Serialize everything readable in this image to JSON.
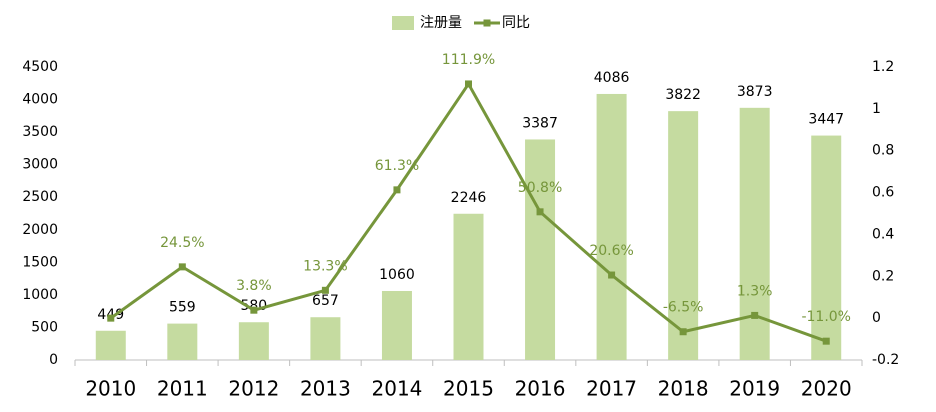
{
  "chart_data": {
    "type": "bar",
    "categories": [
      "2010",
      "2011",
      "2012",
      "2013",
      "2014",
      "2015",
      "2016",
      "2017",
      "2018",
      "2019",
      "2020"
    ],
    "series": [
      {
        "name": "注册量",
        "type": "bar",
        "color": "#c5dba0",
        "values": [
          449,
          559,
          580,
          657,
          1060,
          2246,
          3387,
          4086,
          3822,
          3873,
          3447
        ]
      },
      {
        "name": "同比",
        "type": "line",
        "axis": "y2",
        "color": "#76963b",
        "values": [
          0,
          0.245,
          0.038,
          0.133,
          0.613,
          1.119,
          0.508,
          0.206,
          -0.065,
          0.013,
          -0.11
        ],
        "value_labels": [
          null,
          "24.5%",
          "3.8%",
          "13.3%",
          "61.3%",
          "111.9%",
          "50.8%",
          "20.6%",
          "-6.5%",
          "1.3%",
          "-11.0%"
        ]
      }
    ],
    "ylim": [
      0,
      4500
    ],
    "yticks": [
      0,
      500,
      1000,
      1500,
      2000,
      2500,
      3000,
      3500,
      4000,
      4500
    ],
    "y2lim": [
      -0.2,
      1.2
    ],
    "y2ticks": [
      -0.2,
      0,
      0.2,
      0.4,
      0.6,
      0.8,
      1,
      1.2
    ]
  }
}
